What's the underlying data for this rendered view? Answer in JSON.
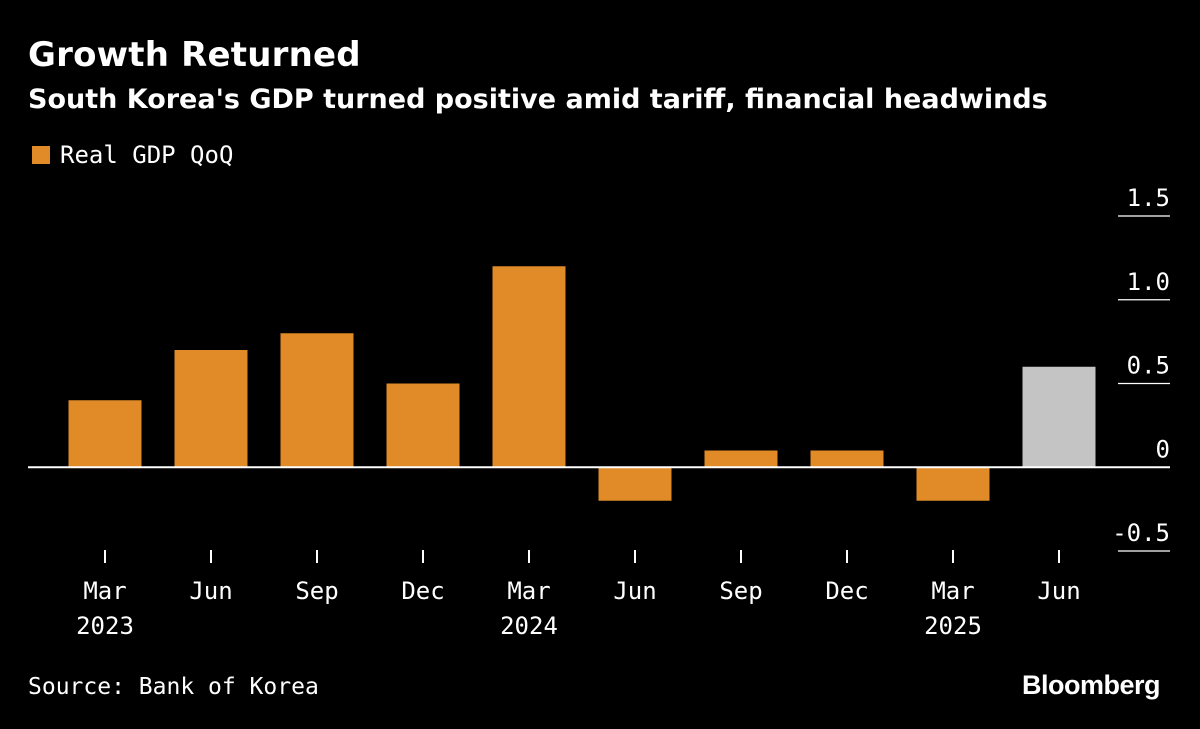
{
  "title": "Growth Returned",
  "subtitle": "South Korea's GDP turned positive amid tariff, financial headwinds",
  "source": "Source: Bank of Korea",
  "brand": "Bloomberg",
  "colors": {
    "bar": "#E08A28",
    "highlight": "#C4C4C4",
    "axis": "#FFFFFF",
    "background": "#000000"
  },
  "chart_data": {
    "type": "bar",
    "title": "Growth Returned",
    "subtitle": "South Korea's GDP turned positive amid tariff, financial headwinds",
    "legend": [
      "Real GDP QoQ"
    ],
    "legend_position": "top-left",
    "categories": [
      "Mar",
      "Jun",
      "Sep",
      "Dec",
      "Mar",
      "Jun",
      "Sep",
      "Dec",
      "Mar",
      "Jun"
    ],
    "year_labels": [
      "2023",
      "",
      "",
      "",
      "2024",
      "",
      "",
      "",
      "2025",
      ""
    ],
    "series": [
      {
        "name": "Real GDP QoQ",
        "values": [
          0.4,
          0.7,
          0.8,
          0.5,
          1.2,
          -0.2,
          0.1,
          0.1,
          -0.2,
          0.6
        ]
      }
    ],
    "highlight_index": 9,
    "yticks": [
      "1.5",
      "1.0",
      "0.5",
      "0",
      "-0.5"
    ],
    "ylim": [
      -0.5,
      1.5
    ],
    "yaxis_side": "right",
    "grid": false
  }
}
